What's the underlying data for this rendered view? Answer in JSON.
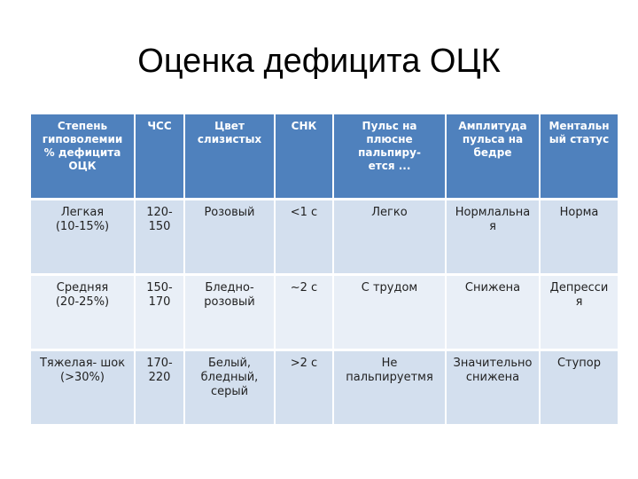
{
  "title": "Оценка дефицита ОЦК",
  "colors": {
    "header_bg": "#4f81bd",
    "row_odd": "#d3dfee",
    "row_even": "#e9eff7"
  },
  "table": {
    "headers": [
      "Степень\nгиповолемии\n% дефицита\nОЦК",
      "ЧСС",
      "Цвет\nслизистых",
      "СНК",
      "Пульс на\nплюсне\nпальпиру-\nется ...",
      "Амплитуда\nпульса на\nбедре",
      "Ментальн\nый статус"
    ],
    "rows": [
      [
        "Легкая\n(10-15%)",
        "120-\n150",
        "Розовый",
        "<1 с",
        "Легко",
        "Нормлальна\nя",
        "Норма"
      ],
      [
        "Средняя\n(20-25%)",
        "150-\n170",
        "Бледно-\nрозовый",
        "~2 с",
        "С трудом",
        "Снижена",
        "Депресси\nя"
      ],
      [
        "Тяжелая- шок\n(>30%)",
        "170-\n220",
        "Белый,\nбледный,\nсерый",
        ">2 с",
        "Не\nпальпируетмя",
        "Значительно\nснижена",
        "Ступор"
      ]
    ]
  }
}
